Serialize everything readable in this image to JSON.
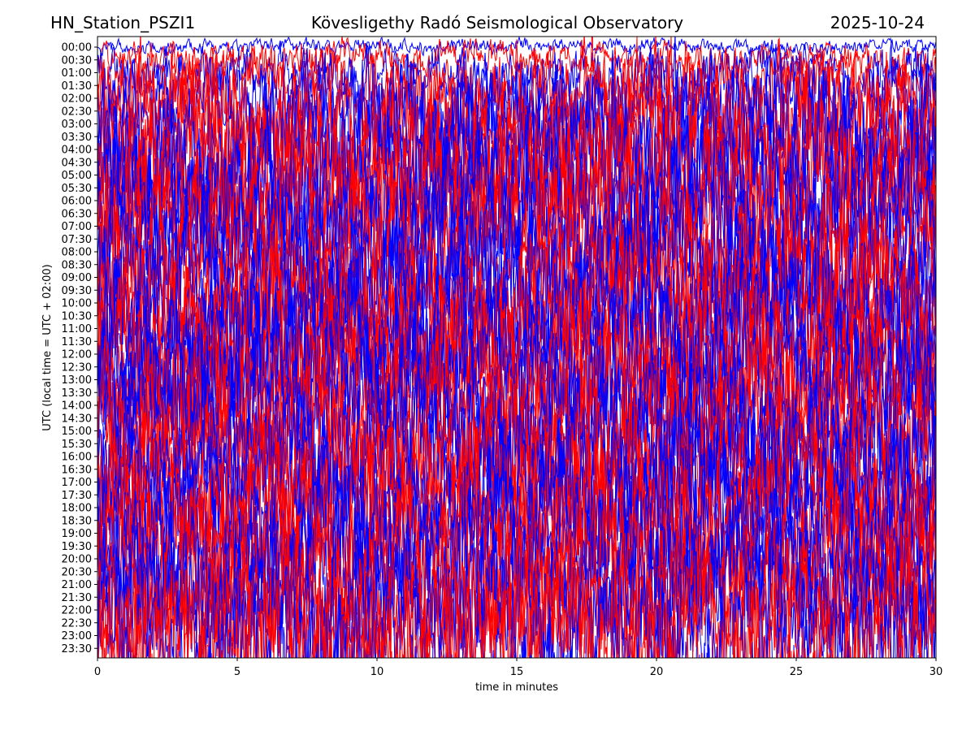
{
  "header": {
    "station": "HN_Station_PSZI1",
    "observatory": "Kövesligethy Radó Seismological Observatory",
    "date": "2025-10-24"
  },
  "chart_data": {
    "type": "line",
    "title": "Kövesligethy Radó Seismological Observatory",
    "xlabel": "time in minutes",
    "ylabel": "UTC (local time = UTC + 02:00)",
    "xlim": [
      0,
      30
    ],
    "x_ticks": [
      "0",
      "5",
      "10",
      "15",
      "20",
      "25",
      "30"
    ],
    "x_tick_values": [
      0,
      5,
      10,
      15,
      20,
      25,
      30
    ],
    "y_tick_labels": [
      "00:00",
      "00:30",
      "01:00",
      "01:30",
      "02:00",
      "02:30",
      "03:00",
      "03:30",
      "04:00",
      "04:30",
      "05:00",
      "05:30",
      "06:00",
      "06:30",
      "07:00",
      "07:30",
      "08:00",
      "08:30",
      "09:00",
      "09:30",
      "10:00",
      "10:30",
      "11:00",
      "11:30",
      "12:00",
      "12:30",
      "13:00",
      "13:30",
      "14:00",
      "14:30",
      "15:00",
      "15:30",
      "16:00",
      "16:30",
      "17:00",
      "17:30",
      "18:00",
      "18:30",
      "19:00",
      "19:30",
      "20:00",
      "20:30",
      "21:00",
      "21:30",
      "22:00",
      "22:30",
      "23:00",
      "23:30"
    ],
    "trace_colors": [
      "#0000ff",
      "#ff0000"
    ],
    "traces_per_line": 48,
    "minutes_per_trace": 30,
    "grid": false
  }
}
